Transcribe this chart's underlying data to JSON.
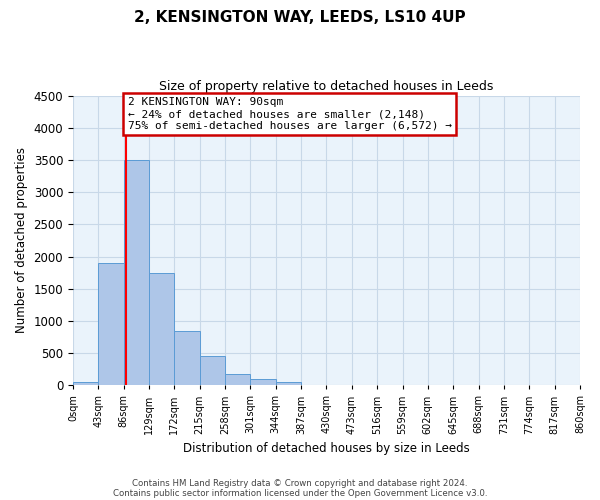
{
  "title": "2, KENSINGTON WAY, LEEDS, LS10 4UP",
  "subtitle": "Size of property relative to detached houses in Leeds",
  "xlabel": "Distribution of detached houses by size in Leeds",
  "ylabel": "Number of detached properties",
  "bin_edges": [
    0,
    43,
    86,
    129,
    172,
    215,
    258,
    301,
    344,
    387,
    430,
    473,
    516,
    559,
    602,
    645,
    688,
    731,
    774,
    817,
    860
  ],
  "bin_labels": [
    "0sqm",
    "43sqm",
    "86sqm",
    "129sqm",
    "172sqm",
    "215sqm",
    "258sqm",
    "301sqm",
    "344sqm",
    "387sqm",
    "430sqm",
    "473sqm",
    "516sqm",
    "559sqm",
    "602sqm",
    "645sqm",
    "688sqm",
    "731sqm",
    "774sqm",
    "817sqm",
    "860sqm"
  ],
  "bar_heights": [
    50,
    1900,
    3500,
    1750,
    850,
    450,
    175,
    100,
    55,
    0,
    0,
    0,
    0,
    0,
    0,
    0,
    0,
    0,
    0,
    0
  ],
  "bar_color": "#aec6e8",
  "bar_edge_color": "#5b9bd5",
  "grid_color": "#c8d8e8",
  "background_color": "#eaf3fb",
  "red_line_x": 90,
  "annotation_line1": "2 KENSINGTON WAY: 90sqm",
  "annotation_line2": "← 24% of detached houses are smaller (2,148)",
  "annotation_line3": "75% of semi-detached houses are larger (6,572) →",
  "annotation_box_edge_color": "#cc0000",
  "ylim": [
    0,
    4500
  ],
  "yticks": [
    0,
    500,
    1000,
    1500,
    2000,
    2500,
    3000,
    3500,
    4000,
    4500
  ],
  "footer_line1": "Contains HM Land Registry data © Crown copyright and database right 2024.",
  "footer_line2": "Contains public sector information licensed under the Open Government Licence v3.0."
}
